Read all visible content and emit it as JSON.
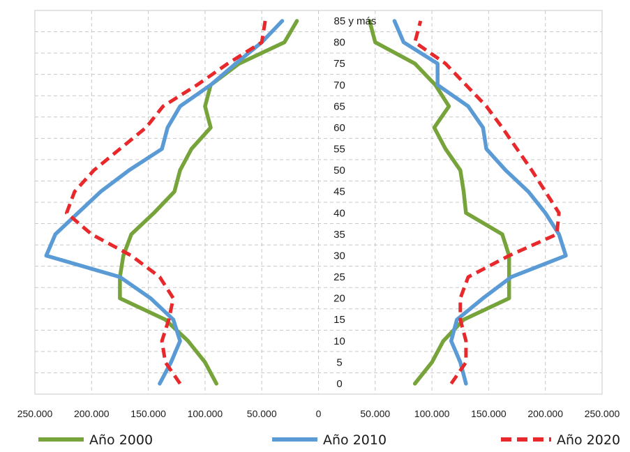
{
  "chart_data": {
    "type": "line",
    "title": "",
    "xlabel": "",
    "ylabel": "",
    "x_ticks": [
      "250.000",
      "200.000",
      "150.000",
      "100.000",
      "50.000",
      "0",
      "50.000",
      "100.000",
      "150.000",
      "200.000",
      "250.000"
    ],
    "xlim": [
      -250000,
      250000
    ],
    "y_categories": [
      "0",
      "5",
      "10",
      "15",
      "20",
      "25",
      "30",
      "35",
      "40",
      "45",
      "50",
      "55",
      "60",
      "65",
      "70",
      "75",
      "80",
      "85 y más"
    ],
    "grid": true,
    "legend_position": "bottom",
    "series": [
      {
        "name": "Año 2000",
        "color": "#77A33B",
        "style": "solid",
        "left": [
          90000,
          100000,
          115000,
          135000,
          175000,
          175000,
          172000,
          165000,
          145000,
          127000,
          122000,
          112000,
          95000,
          100000,
          95000,
          70000,
          30000,
          19000
        ],
        "right": [
          85000,
          100000,
          110000,
          128000,
          168000,
          168000,
          168000,
          162000,
          130000,
          128000,
          125000,
          112000,
          102000,
          115000,
          103000,
          85000,
          50000,
          45000
        ]
      },
      {
        "name": "Año 2010",
        "color": "#5B9BD5",
        "style": "solid",
        "left": [
          140000,
          130000,
          122000,
          128000,
          148000,
          175000,
          240000,
          232000,
          212000,
          192000,
          167000,
          138000,
          133000,
          122000,
          95000,
          73000,
          50000,
          32000
        ],
        "right": [
          130000,
          125000,
          117000,
          122000,
          145000,
          170000,
          218000,
          212000,
          200000,
          185000,
          165000,
          148000,
          145000,
          132000,
          105000,
          105000,
          75000,
          67000
        ]
      },
      {
        "name": "Año 2020",
        "color": "#E8282A",
        "style": "dashed",
        "left": [
          122000,
          135000,
          138000,
          132000,
          128000,
          140000,
          165000,
          200000,
          222000,
          215000,
          198000,
          175000,
          152000,
          137000,
          107000,
          80000,
          50000,
          47000
        ],
        "right": [
          117000,
          130000,
          130000,
          125000,
          125000,
          132000,
          168000,
          210000,
          212000,
          200000,
          188000,
          175000,
          162000,
          148000,
          130000,
          112000,
          85000,
          90000
        ]
      }
    ]
  }
}
